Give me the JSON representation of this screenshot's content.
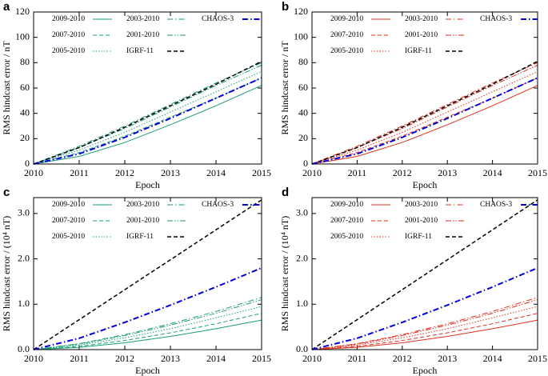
{
  "chart_data": [
    {
      "type": "line",
      "label": "a",
      "xlabel": "Epoch",
      "ylabel": "RMS hindcast error / nT",
      "xlim": [
        2010,
        2015
      ],
      "ylim": [
        0,
        120
      ],
      "xticks": [
        2010,
        2011,
        2012,
        2013,
        2014,
        2015
      ],
      "yticks": [
        0,
        20,
        40,
        60,
        80,
        100,
        120
      ],
      "x": [
        2010,
        2011,
        2012,
        2013,
        2014,
        2015
      ],
      "series": [
        {
          "name": "2009-2010",
          "color": "#1b9e77",
          "style": "solid",
          "linewidth": 1,
          "values": [
            0,
            6,
            17,
            31,
            46,
            62
          ]
        },
        {
          "name": "2007-2010",
          "color": "#1b9e77",
          "style": "dashed",
          "linewidth": 1,
          "values": [
            0,
            9,
            22,
            37,
            52,
            68
          ]
        },
        {
          "name": "2005-2010",
          "color": "#1b9e77",
          "style": "dotted",
          "linewidth": 1,
          "values": [
            0,
            11,
            25,
            41,
            57,
            73
          ]
        },
        {
          "name": "2003-2010",
          "color": "#1b9e77",
          "style": "dashdot",
          "linewidth": 1,
          "values": [
            0,
            14,
            30,
            47,
            64,
            80
          ]
        },
        {
          "name": "2001-2010",
          "color": "#1b9e77",
          "style": "dashdotdot",
          "linewidth": 1,
          "values": [
            0,
            13,
            28,
            45,
            62,
            78
          ]
        },
        {
          "name": "IGRF-11",
          "color": "#000000",
          "style": "dashed",
          "linewidth": 1.5,
          "values": [
            0,
            13,
            29,
            46,
            63,
            81
          ]
        },
        {
          "name": "CHAOS-3",
          "color": "#0000dd",
          "style": "dashdot",
          "linewidth": 2,
          "values": [
            0,
            8,
            21,
            36,
            52,
            68
          ]
        }
      ]
    },
    {
      "type": "line",
      "label": "b",
      "xlabel": "Epoch",
      "ylabel": "RMS hindcast error / nT",
      "xlim": [
        2010,
        2015
      ],
      "ylim": [
        0,
        120
      ],
      "xticks": [
        2010,
        2011,
        2012,
        2013,
        2014,
        2015
      ],
      "yticks": [
        0,
        20,
        40,
        60,
        80,
        100,
        120
      ],
      "x": [
        2010,
        2011,
        2012,
        2013,
        2014,
        2015
      ],
      "series": [
        {
          "name": "2009-2010",
          "color": "#e0301e",
          "style": "solid",
          "linewidth": 1,
          "values": [
            0,
            6,
            17,
            31,
            46,
            62
          ]
        },
        {
          "name": "2007-2010",
          "color": "#e0301e",
          "style": "dashed",
          "linewidth": 1,
          "values": [
            0,
            9,
            22,
            37,
            52,
            68
          ]
        },
        {
          "name": "2005-2010",
          "color": "#e0301e",
          "style": "dotted",
          "linewidth": 1,
          "values": [
            0,
            11,
            25,
            41,
            57,
            73
          ]
        },
        {
          "name": "2003-2010",
          "color": "#e0301e",
          "style": "dashdot",
          "linewidth": 1,
          "values": [
            0,
            14,
            30,
            47,
            64,
            80
          ]
        },
        {
          "name": "2001-2010",
          "color": "#e0301e",
          "style": "dashdotdot",
          "linewidth": 1,
          "values": [
            0,
            13,
            28,
            45,
            62,
            78
          ]
        },
        {
          "name": "IGRF-11",
          "color": "#000000",
          "style": "dashed",
          "linewidth": 1.5,
          "values": [
            0,
            13,
            29,
            46,
            63,
            81
          ]
        },
        {
          "name": "CHAOS-3",
          "color": "#0000dd",
          "style": "dashdot",
          "linewidth": 2,
          "values": [
            0,
            8,
            21,
            36,
            52,
            68
          ]
        }
      ]
    },
    {
      "type": "line",
      "label": "c",
      "xlabel": "Epoch",
      "ylabel": "RMS hindcast error / (10⁴ nT)",
      "xlim": [
        2010,
        2015
      ],
      "ylim": [
        0,
        3.35
      ],
      "xticks": [
        2010,
        2011,
        2012,
        2013,
        2014,
        2015
      ],
      "yticks": [
        {
          "value": 0,
          "label": "0.0"
        },
        {
          "value": 1,
          "label": "1.0"
        },
        {
          "value": 2,
          "label": "2.0"
        },
        {
          "value": 3,
          "label": "3.0"
        }
      ],
      "x": [
        2010,
        2011,
        2012,
        2013,
        2014,
        2015
      ],
      "series": [
        {
          "name": "2009-2010",
          "color": "#1b9e77",
          "style": "solid",
          "linewidth": 1,
          "values": [
            0,
            0.05,
            0.15,
            0.29,
            0.46,
            0.65
          ]
        },
        {
          "name": "2007-2010",
          "color": "#1b9e77",
          "style": "dashed",
          "linewidth": 1,
          "values": [
            0,
            0.07,
            0.2,
            0.37,
            0.57,
            0.8
          ]
        },
        {
          "name": "2005-2010",
          "color": "#1b9e77",
          "style": "dotted",
          "linewidth": 1,
          "values": [
            0,
            0.1,
            0.26,
            0.46,
            0.7,
            0.95
          ]
        },
        {
          "name": "2003-2010",
          "color": "#1b9e77",
          "style": "dashdot",
          "linewidth": 1,
          "values": [
            0,
            0.13,
            0.33,
            0.57,
            0.84,
            1.15
          ]
        },
        {
          "name": "2001-2010",
          "color": "#1b9e77",
          "style": "dashdotdot",
          "linewidth": 1,
          "values": [
            0,
            0.12,
            0.31,
            0.54,
            0.8,
            1.1
          ]
        },
        {
          "name": "IGRF-11",
          "color": "#000000",
          "style": "dashed",
          "linewidth": 1.5,
          "values": [
            0,
            0.66,
            1.32,
            1.98,
            2.64,
            3.3
          ]
        },
        {
          "name": "CHAOS-3",
          "color": "#0000dd",
          "style": "dashdot",
          "linewidth": 2,
          "values": [
            0,
            0.25,
            0.6,
            0.98,
            1.38,
            1.8
          ]
        }
      ]
    },
    {
      "type": "line",
      "label": "d",
      "xlabel": "Epoch",
      "ylabel": "RMS hindcast error / (10⁴ nT)",
      "xlim": [
        2010,
        2015
      ],
      "ylim": [
        0,
        3.35
      ],
      "xticks": [
        2010,
        2011,
        2012,
        2013,
        2014,
        2015
      ],
      "yticks": [
        {
          "value": 0,
          "label": "0.0"
        },
        {
          "value": 1,
          "label": "1.0"
        },
        {
          "value": 2,
          "label": "2.0"
        },
        {
          "value": 3,
          "label": "3.0"
        }
      ],
      "x": [
        2010,
        2011,
        2012,
        2013,
        2014,
        2015
      ],
      "series": [
        {
          "name": "2009-2010",
          "color": "#e0301e",
          "style": "solid",
          "linewidth": 1,
          "values": [
            0,
            0.05,
            0.15,
            0.29,
            0.46,
            0.65
          ]
        },
        {
          "name": "2007-2010",
          "color": "#e0301e",
          "style": "dashed",
          "linewidth": 1,
          "values": [
            0,
            0.07,
            0.2,
            0.37,
            0.57,
            0.8
          ]
        },
        {
          "name": "2005-2010",
          "color": "#e0301e",
          "style": "dotted",
          "linewidth": 1,
          "values": [
            0,
            0.1,
            0.26,
            0.46,
            0.7,
            0.95
          ]
        },
        {
          "name": "2003-2010",
          "color": "#e0301e",
          "style": "dashdot",
          "linewidth": 1,
          "values": [
            0,
            0.13,
            0.33,
            0.57,
            0.84,
            1.15
          ]
        },
        {
          "name": "2001-2010",
          "color": "#e0301e",
          "style": "dashdotdot",
          "linewidth": 1,
          "values": [
            0,
            0.12,
            0.31,
            0.54,
            0.8,
            1.1
          ]
        },
        {
          "name": "IGRF-11",
          "color": "#000000",
          "style": "dashed",
          "linewidth": 1.5,
          "values": [
            0,
            0.66,
            1.32,
            1.98,
            2.64,
            3.3
          ]
        },
        {
          "name": "CHAOS-3",
          "color": "#0000dd",
          "style": "dashdot",
          "linewidth": 2,
          "values": [
            0,
            0.25,
            0.6,
            0.98,
            1.38,
            1.8
          ]
        }
      ]
    }
  ]
}
